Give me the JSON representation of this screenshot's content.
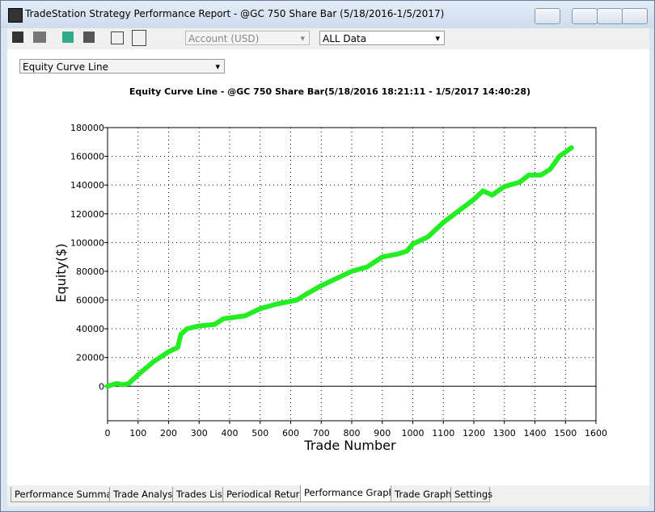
{
  "window": {
    "title": "TradeStation Strategy Performance Report - @GC 750 Share Bar (5/18/2016-1/5/2017)"
  },
  "toolbar": {
    "account": "Account (USD)",
    "range": "ALL Data"
  },
  "graph_selector": "Equity Curve Line",
  "chart_data": {
    "type": "line",
    "title": "Equity Curve Line - @GC 750 Share Bar(5/18/2016 18:21:11 - 1/5/2017 14:40:28)",
    "x_label": "Trade Number",
    "y_label": "Equity($)",
    "x": [
      0,
      30,
      50,
      70,
      100,
      150,
      200,
      230,
      240,
      260,
      300,
      350,
      380,
      450,
      500,
      550,
      620,
      650,
      700,
      750,
      800,
      850,
      900,
      950,
      980,
      1000,
      1050,
      1100,
      1150,
      1200,
      1230,
      1260,
      1300,
      1350,
      1380,
      1420,
      1450,
      1480,
      1520
    ],
    "series": [
      {
        "name": "Equity",
        "color": "#22ee22",
        "values": [
          0,
          2000,
          1000,
          2000,
          8000,
          17000,
          24000,
          27000,
          36000,
          40000,
          42000,
          43000,
          47000,
          49000,
          54000,
          57000,
          60000,
          64000,
          70000,
          75000,
          80000,
          83000,
          90000,
          92000,
          94000,
          99000,
          104000,
          114000,
          122000,
          130000,
          136000,
          133000,
          139000,
          142000,
          147000,
          147000,
          151000,
          160000,
          166000
        ]
      }
    ],
    "xlim": [
      0,
      1600
    ],
    "xticks": [
      0,
      100,
      200,
      300,
      400,
      500,
      600,
      700,
      800,
      900,
      1000,
      1100,
      1200,
      1300,
      1400,
      1500,
      1600
    ],
    "ylim": [
      -24000,
      180000
    ],
    "yticks": [
      0,
      20000,
      40000,
      60000,
      80000,
      100000,
      120000,
      140000,
      160000,
      180000
    ],
    "grid": true
  },
  "tabs": [
    "Performance Summary",
    "Trade Analysis",
    "Trades List",
    "Periodical Returns",
    "Performance Graphs",
    "Trade Graphs",
    "Settings"
  ]
}
